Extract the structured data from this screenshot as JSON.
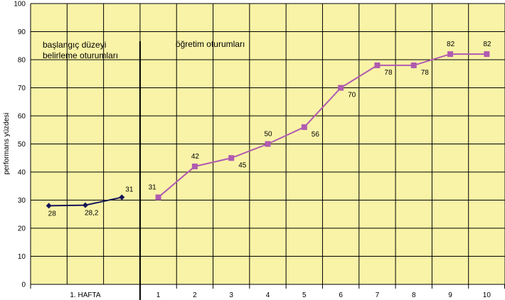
{
  "chart_data": {
    "type": "line",
    "ylabel": "performans yüzdesi",
    "xlabel": "",
    "ylim": [
      0,
      100
    ],
    "y_ticks": [
      "0",
      "10",
      "20",
      "30",
      "40",
      "50",
      "60",
      "70",
      "80",
      "90",
      "100"
    ],
    "grid": true,
    "background_color": "#f9f3a7",
    "x_groups": [
      {
        "label": "1. HAFTA",
        "sessions": 3
      },
      {
        "label": "1",
        "sessions": 1
      },
      {
        "label": "2",
        "sessions": 1
      },
      {
        "label": "3",
        "sessions": 1
      },
      {
        "label": "4",
        "sessions": 1
      },
      {
        "label": "5",
        "sessions": 1
      },
      {
        "label": "6",
        "sessions": 1
      },
      {
        "label": "7",
        "sessions": 1
      },
      {
        "label": "8",
        "sessions": 1
      },
      {
        "label": "9",
        "sessions": 1
      },
      {
        "label": "10",
        "sessions": 1
      }
    ],
    "phases": [
      {
        "label_lines": [
          "başlangıç düzeyi",
          "belirleme oturumları"
        ]
      },
      {
        "label_lines": [
          "öğretim oturumları"
        ]
      }
    ],
    "series": [
      {
        "phase": "baseline",
        "color": "#14145a",
        "marker": "diamond",
        "x": [
          1,
          2,
          3
        ],
        "values": [
          28,
          28.2,
          31
        ],
        "labels": [
          "28",
          "28,2",
          "31"
        ]
      },
      {
        "phase": "teaching",
        "color": "#b05bb1",
        "marker": "square",
        "x": [
          4,
          5,
          6,
          7,
          8,
          9,
          10,
          11,
          12,
          13
        ],
        "values": [
          31,
          42,
          45,
          50,
          56,
          70,
          78,
          78,
          82,
          82
        ],
        "labels": [
          "31",
          "42",
          "45",
          "50",
          "56",
          "70",
          "78",
          "78",
          "82",
          "82"
        ]
      }
    ]
  }
}
